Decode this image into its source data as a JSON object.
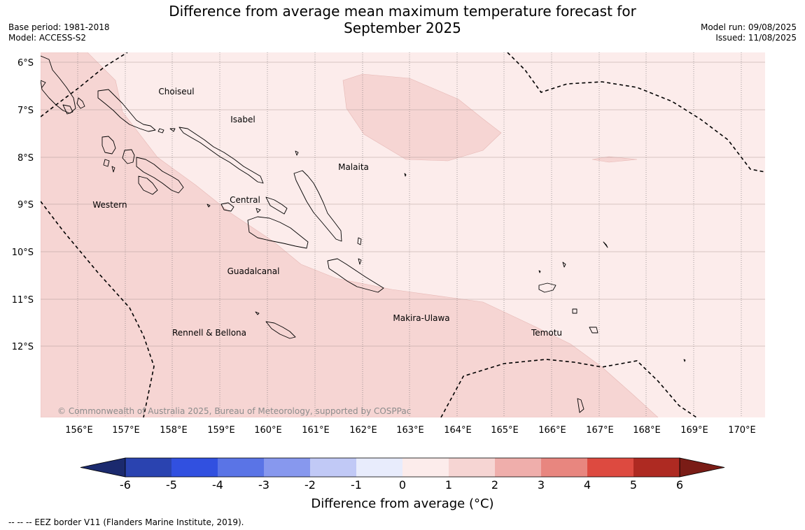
{
  "header": {
    "title_line1": "Difference from average mean maximum temperature forecast for",
    "title_line2": "September 2025",
    "base_period": "Base period: 1981-2018",
    "model": "Model: ACCESS-S2",
    "model_run": "Model run: 09/08/2025",
    "issued": "Issued: 11/08/2025"
  },
  "map": {
    "lat_labels": [
      "6°S",
      "7°S",
      "8°S",
      "9°S",
      "10°S",
      "11°S",
      "12°S"
    ],
    "lon_labels": [
      "156°E",
      "157°E",
      "158°E",
      "159°E",
      "160°E",
      "161°E",
      "162°E",
      "163°E",
      "164°E",
      "165°E",
      "166°E",
      "167°E",
      "168°E",
      "169°E",
      "170°E"
    ],
    "provinces": [
      "Choiseul",
      "Isabel",
      "Malaita",
      "Western",
      "Central",
      "Guadalcanal",
      "Makira-Ulawa",
      "Temotu",
      "Rennell & Bellona"
    ],
    "copyright": "© Commonwealth of Australia 2025, Bureau of Meteorology, supported by COSPPac"
  },
  "colorbar": {
    "ticks": [
      "-6",
      "-5",
      "-4",
      "-3",
      "-2",
      "-1",
      "0",
      "1",
      "2",
      "3",
      "4",
      "5",
      "6"
    ],
    "colors": [
      "#1b2a6e",
      "#2a43b0",
      "#3150e0",
      "#5a74e6",
      "#8798ee",
      "#c1c9f6",
      "#e8ecfc",
      "#fceceb",
      "#f6d5d3",
      "#efaeab",
      "#e8867f",
      "#dd4a40",
      "#ae2a22",
      "#7a1c16"
    ],
    "label": "Difference from average (°C)"
  },
  "footnote": "--  --  -- EEZ border V11 (Flanders Marine Institute, 2019)."
}
